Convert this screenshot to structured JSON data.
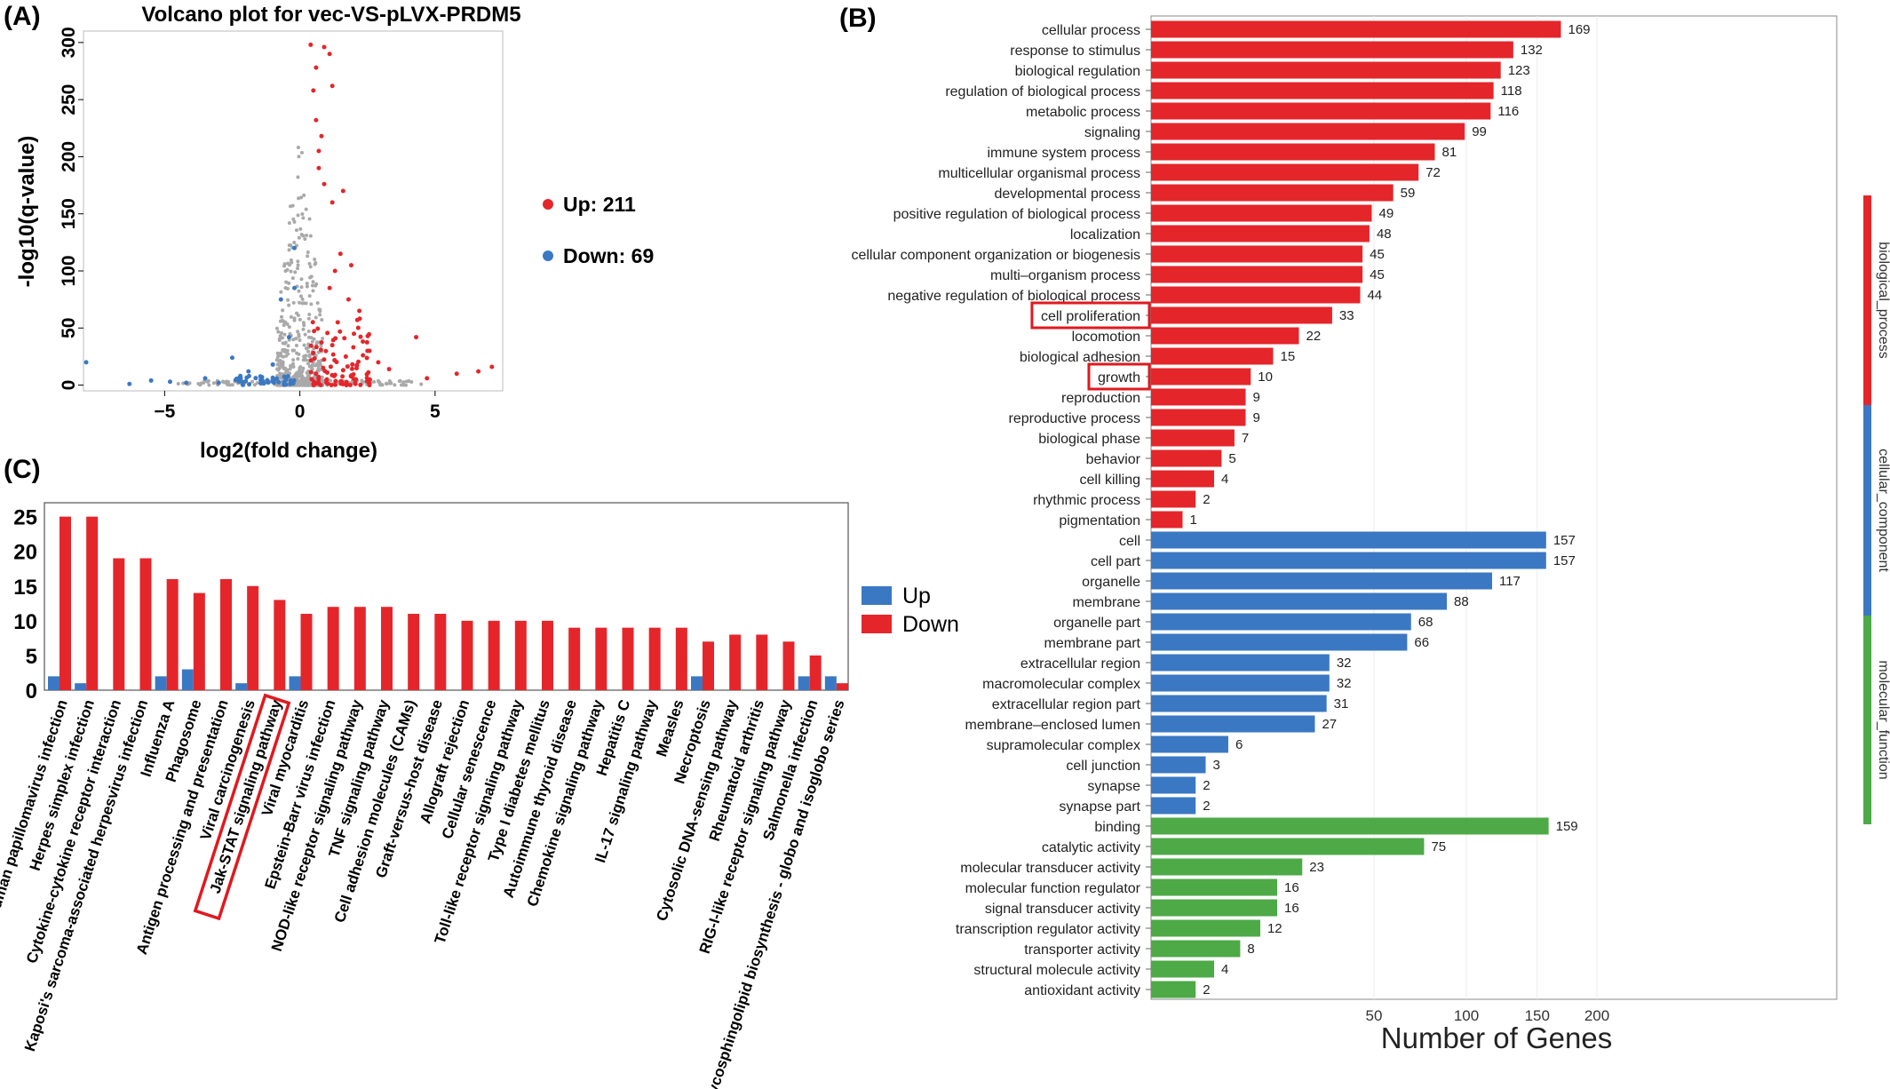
{
  "panels": {
    "a": "(A)",
    "b": "(B)",
    "c": "(C)"
  },
  "colors": {
    "up": "#e4262b",
    "down": "#3b78c3",
    "ns": "#a9a9a9",
    "bp": "#e4262b",
    "cc": "#3b78c3",
    "mf": "#4daa47"
  },
  "chart_data": [
    {
      "type": "scatter",
      "title": "Volcano plot for vec-VS-pLVX-PRDM5",
      "xlabel": "log2(fold change)",
      "ylabel": "-log10(q-value)",
      "xlim": [
        -8,
        7.5
      ],
      "ylim": [
        -5,
        310
      ],
      "xticks": [
        -5,
        0,
        5
      ],
      "yticks": [
        0,
        50,
        100,
        150,
        200,
        250,
        300
      ],
      "legend": [
        {
          "name": "Up: 211",
          "color": "#e4262b"
        },
        {
          "name": "Down: 69",
          "color": "#3b78c3"
        }
      ],
      "legend_position": "right",
      "sample_points": {
        "up": [
          [
            0.4,
            298
          ],
          [
            0.9,
            296
          ],
          [
            1.1,
            290
          ],
          [
            0.6,
            278
          ],
          [
            1.2,
            262
          ],
          [
            0.5,
            258
          ],
          [
            0.6,
            232
          ],
          [
            0.8,
            218
          ],
          [
            0.7,
            205
          ],
          [
            0.7,
            190
          ],
          [
            0.9,
            176
          ],
          [
            1.6,
            170
          ],
          [
            1.2,
            160
          ],
          [
            1.5,
            115
          ],
          [
            1.9,
            105
          ],
          [
            1.3,
            100
          ],
          [
            1.1,
            85
          ],
          [
            1.8,
            75
          ],
          [
            2.2,
            65
          ],
          [
            1.4,
            55
          ],
          [
            2.0,
            45
          ],
          [
            4.3,
            42
          ],
          [
            2.5,
            30
          ],
          [
            1.2,
            35
          ],
          [
            1.7,
            25
          ],
          [
            2.9,
            20
          ],
          [
            3.3,
            14
          ],
          [
            4.7,
            6
          ],
          [
            5.8,
            10
          ],
          [
            6.6,
            12
          ],
          [
            7.1,
            16
          ],
          [
            0.6,
            10
          ],
          [
            1.0,
            5
          ]
        ],
        "down": [
          [
            -7.9,
            20
          ],
          [
            -6.3,
            1
          ],
          [
            -5.5,
            4
          ],
          [
            -4.2,
            2
          ],
          [
            -3.5,
            6
          ],
          [
            -2.5,
            24
          ],
          [
            -2.2,
            8
          ],
          [
            -1.9,
            12
          ],
          [
            -1.4,
            7
          ],
          [
            -1.0,
            18
          ],
          [
            -0.7,
            75
          ],
          [
            -0.4,
            42
          ],
          [
            -0.2,
            120
          ],
          [
            -0.2,
            85
          ],
          [
            -3.0,
            2
          ],
          [
            -4.8,
            3
          ],
          [
            -1.2,
            3
          ]
        ]
      }
    },
    {
      "type": "bar",
      "orientation": "horizontal",
      "xlabel": "Number of Genes",
      "xscale": "sqrt",
      "xticks": [
        50,
        100,
        150,
        200
      ],
      "xlim": [
        0,
        210
      ],
      "categories": [
        "cellular process",
        "response to stimulus",
        "biological regulation",
        "regulation of biological process",
        "metabolic process",
        "signaling",
        "immune system process",
        "multicellular organismal process",
        "developmental process",
        "positive regulation of biological process",
        "localization",
        "cellular component organization or biogenesis",
        "multi–organism process",
        "negative regulation of biological process",
        "cell proliferation",
        "locomotion",
        "biological adhesion",
        "growth",
        "reproduction",
        "reproductive process",
        "biological phase",
        "behavior",
        "cell killing",
        "rhythmic process",
        "pigmentation",
        "cell",
        "cell part",
        "organelle",
        "membrane",
        "organelle part",
        "membrane part",
        "extracellular region",
        "macromolecular complex",
        "extracellular region part",
        "membrane–enclosed lumen",
        "supramolecular complex",
        "cell junction",
        "synapse",
        "synapse part",
        "binding",
        "catalytic activity",
        "molecular transducer activity",
        "molecular function regulator",
        "signal transducer activity",
        "transcription regulator activity",
        "transporter activity",
        "structural molecule activity",
        "antioxidant activity"
      ],
      "values": [
        169,
        132,
        123,
        118,
        116,
        99,
        81,
        72,
        59,
        49,
        48,
        45,
        45,
        44,
        33,
        22,
        15,
        10,
        9,
        9,
        7,
        5,
        4,
        2,
        1,
        157,
        157,
        117,
        88,
        68,
        66,
        32,
        32,
        31,
        27,
        6,
        3,
        2,
        2,
        159,
        75,
        23,
        16,
        16,
        12,
        8,
        4,
        2
      ],
      "groups": [
        {
          "name": "biological_process",
          "start": 0,
          "count": 25,
          "color": "#e4262b"
        },
        {
          "name": "cellular_component",
          "start": 25,
          "count": 14,
          "color": "#3b78c3"
        },
        {
          "name": "molecular_function",
          "start": 39,
          "count": 9,
          "color": "#4daa47"
        }
      ],
      "highlighted": [
        "cell proliferation",
        "growth"
      ]
    },
    {
      "type": "bar",
      "ylim": [
        0,
        27
      ],
      "yticks": [
        0,
        5,
        10,
        15,
        20,
        25
      ],
      "legend_position": "right",
      "categories": [
        "Human papillomavirus infection",
        "Herpes simplex infection",
        "Cytokine-cytokine receptor interaction",
        "Kaposi's sarcoma-associated herpesvirus infection",
        "Influenza A",
        "Phagosome",
        "Antigen processing and presentation",
        "Viral carcinogenesis",
        "Jak-STAT signaling pathway",
        "Viral myocarditis",
        "Epstein-Barr virus infection",
        "NOD-like receptor signaling pathway",
        "TNF signaling pathway",
        "Cell adhesion molecules (CAMs)",
        "Graft-versus-host disease",
        "Allograft rejection",
        "Cellular senescence",
        "Toll-like receptor signaling pathway",
        "Type I diabetes mellitus",
        "Autoimmune thyroid disease",
        "Chemokine signaling pathway",
        "Hepatitis C",
        "IL-17 signaling pathway",
        "Measles",
        "Necroptosis",
        "Cytosolic DNA-sensing pathway",
        "Rheumatoid arthritis",
        "RIG-I-like receptor signaling pathway",
        "Salmonella infection",
        "Glycosphingolipid biosynthesis - globo and isoglobo series"
      ],
      "series": [
        {
          "name": "Up",
          "color": "#3b78c3",
          "values": [
            2,
            1,
            0,
            0,
            2,
            3,
            0,
            1,
            0,
            2,
            0,
            0,
            0,
            0,
            0,
            0,
            0,
            0,
            0,
            0,
            0,
            0,
            0,
            0,
            2,
            0,
            0,
            0,
            2,
            2
          ]
        },
        {
          "name": "Down",
          "color": "#e4262b",
          "values": [
            25,
            25,
            19,
            19,
            16,
            14,
            16,
            15,
            13,
            11,
            12,
            12,
            12,
            11,
            11,
            10,
            10,
            10,
            10,
            9,
            9,
            9,
            9,
            9,
            7,
            8,
            8,
            7,
            5,
            1
          ]
        }
      ],
      "highlighted": [
        "Jak-STAT signaling pathway"
      ]
    }
  ]
}
